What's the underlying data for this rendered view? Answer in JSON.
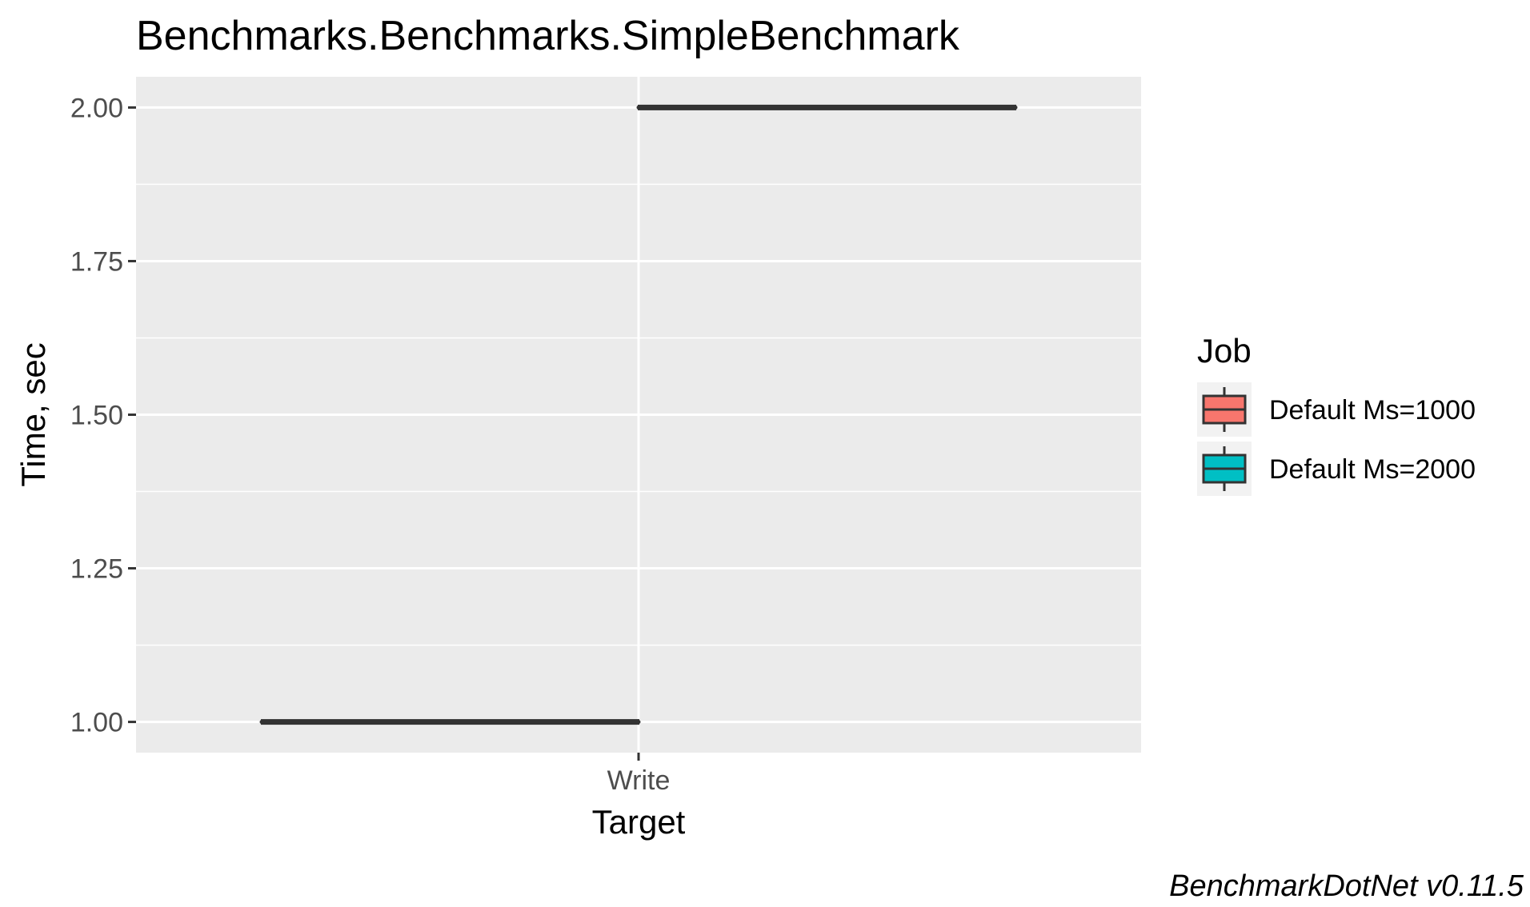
{
  "chart_data": {
    "type": "box",
    "title": "Benchmarks.Benchmarks.SimpleBenchmark",
    "xlabel": "Target",
    "ylabel": "Time, sec",
    "categories": [
      "Write"
    ],
    "yticks": [
      "1.00",
      "1.25",
      "1.50",
      "1.75",
      "2.00"
    ],
    "ylim": [
      0.95,
      2.05
    ],
    "grid": true,
    "legend_title": "Job",
    "legend_position": "right",
    "series": [
      {
        "name": "Default Ms=1000",
        "color": "#F8766D",
        "values": [
          1.0
        ]
      },
      {
        "name": "Default Ms=2000",
        "color": "#00BFC4",
        "values": [
          2.0
        ]
      }
    ],
    "caption": "BenchmarkDotNet v0.11.5"
  }
}
